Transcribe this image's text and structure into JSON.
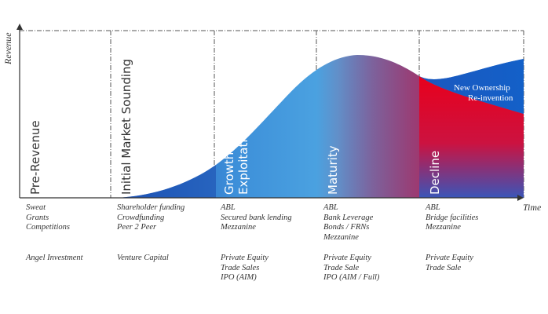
{
  "axes": {
    "y_label": "Revenue",
    "x_label": "Time"
  },
  "stages": [
    {
      "label": "Pre-Revenue"
    },
    {
      "label": "Initial Market Sounding"
    },
    {
      "label_line1": "Growth / Commercial",
      "label_line2": "Exploitation"
    },
    {
      "label": "Maturity"
    },
    {
      "label": "Decline"
    }
  ],
  "overlay": {
    "line1": "New Ownership",
    "line2": "Re-invention"
  },
  "funding": [
    {
      "group1": [
        "Sweat",
        "Grants",
        "Competitions"
      ],
      "group2": [
        "Angel Investment"
      ]
    },
    {
      "group1": [
        "Shareholder funding",
        "Crowdfunding",
        "Peer 2 Peer"
      ],
      "group2": [
        "Venture Capital"
      ]
    },
    {
      "group1": [
        "ABL",
        "Secured bank lending",
        "Mezzanine"
      ],
      "group2": [
        "Private Equity",
        "Trade Sales",
        "IPO (AIM)"
      ]
    },
    {
      "group1": [
        "ABL",
        "Bank Leverage",
        "Bonds / FRNs",
        "Mezzanine"
      ],
      "group2": [
        "Private Equity",
        "Trade Sale",
        "IPO (AIM / Full)"
      ]
    },
    {
      "group1": [
        "ABL",
        "Bridge facilities",
        "Mezzanine"
      ],
      "group2": [
        "Private Equity",
        "Trade Sale"
      ]
    }
  ],
  "colors": {
    "blue_dark": "#1a5cc0",
    "blue_light": "#4aa0e0",
    "red": "#e0001a",
    "text": "#333333"
  }
}
